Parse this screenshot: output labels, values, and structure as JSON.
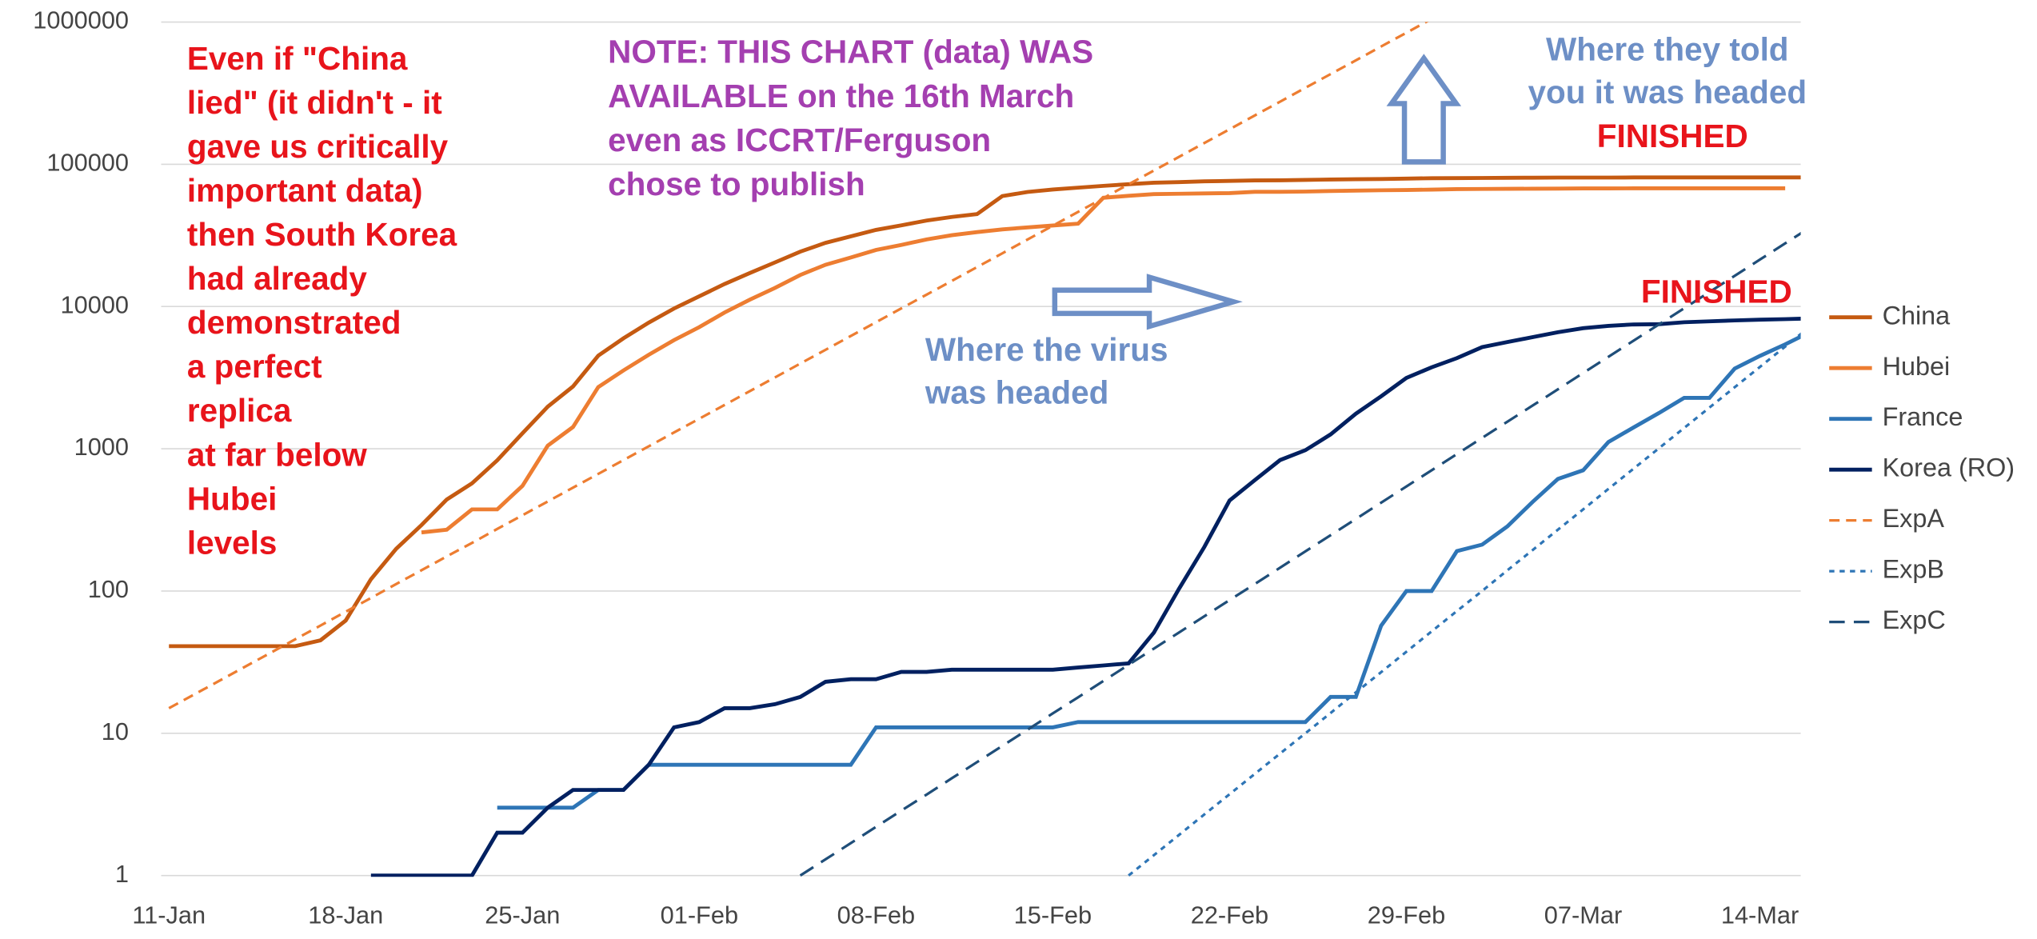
{
  "chart_data": {
    "type": "line",
    "ylog": true,
    "ylim": [
      1,
      1000000
    ],
    "yticks": [
      1,
      10,
      100,
      1000,
      10000,
      100000,
      1000000
    ],
    "grid": true,
    "legend": "right",
    "categories": [
      "11-Jan",
      null,
      null,
      null,
      null,
      null,
      null,
      "18-Jan",
      null,
      null,
      null,
      null,
      null,
      null,
      "25-Jan",
      null,
      null,
      null,
      null,
      null,
      null,
      "01-Feb",
      null,
      null,
      null,
      null,
      null,
      null,
      "08-Feb",
      null,
      null,
      null,
      null,
      null,
      null,
      "15-Feb",
      null,
      null,
      null,
      null,
      null,
      null,
      "22-Feb",
      null,
      null,
      null,
      null,
      null,
      null,
      "29-Feb",
      null,
      null,
      null,
      null,
      null,
      null,
      "07-Mar",
      null,
      null,
      null,
      null,
      null,
      null,
      "14-Mar",
      null,
      null
    ],
    "series": [
      {
        "name": "China",
        "color": "#c55a11",
        "dash": "solid",
        "values": [
          41,
          41,
          41,
          41,
          41,
          41,
          45,
          62,
          121,
          198,
          291,
          440,
          571,
          830,
          1287,
          1975,
          2744,
          4515,
          5974,
          7711,
          9692,
          11791,
          14380,
          17205,
          20438,
          24324,
          28018,
          31161,
          34546,
          37198,
          40171,
          42638,
          44653,
          59804,
          63851,
          66492,
          68500,
          70548,
          72436,
          74185,
          75002,
          75891,
          76288,
          76936,
          77150,
          77658,
          78064,
          78497,
          78824,
          79251,
          79824,
          80026,
          80151,
          80270,
          80409,
          80552,
          80651,
          80695,
          80735,
          80754,
          80778,
          80793,
          80813,
          80824,
          80844,
          80860
        ]
      },
      {
        "name": "Hubei",
        "color": "#ed7d31",
        "dash": "solid",
        "values": [
          null,
          null,
          null,
          null,
          null,
          null,
          null,
          null,
          null,
          null,
          258,
          270,
          375,
          375,
          549,
          1052,
          1423,
          2714,
          3554,
          4586,
          5806,
          7153,
          9074,
          11177,
          13522,
          16678,
          19665,
          22112,
          24953,
          27100,
          29631,
          31728,
          33366,
          34874,
          35998,
          37100,
          38200,
          58200,
          59989,
          61682,
          62031,
          62442,
          62662,
          64084,
          64084,
          64287,
          64786,
          65187,
          65596,
          65914,
          66337,
          66907,
          67103,
          67217,
          67332,
          67466,
          67592,
          67666,
          67707,
          67743,
          67760,
          67773,
          67781,
          67786,
          67790,
          null
        ]
      },
      {
        "name": "France",
        "color": "#2e75b6",
        "dash": "solid",
        "values": [
          null,
          null,
          null,
          null,
          null,
          null,
          null,
          null,
          null,
          null,
          null,
          null,
          null,
          3,
          3,
          3,
          3,
          4,
          4,
          6,
          6,
          6,
          6,
          6,
          6,
          6,
          6,
          6,
          11,
          11,
          11,
          11,
          11,
          11,
          11,
          11,
          12,
          12,
          12,
          12,
          12,
          12,
          12,
          12,
          12,
          12,
          18,
          18,
          57,
          100,
          100,
          191,
          212,
          285,
          423,
          613,
          706,
          1116,
          1412,
          1784,
          2281,
          2281,
          3661,
          4499,
          5423,
          6633
        ]
      },
      {
        "name": "Korea (RO)",
        "color": "#002060",
        "dash": "solid",
        "values": [
          null,
          null,
          null,
          null,
          null,
          null,
          null,
          null,
          1,
          1,
          1,
          1,
          1,
          2,
          2,
          3,
          4,
          4,
          4,
          6,
          11,
          12,
          15,
          15,
          16,
          18,
          23,
          24,
          24,
          27,
          27,
          28,
          28,
          28,
          28,
          28,
          29,
          30,
          31,
          51,
          104,
          204,
          433,
          602,
          833,
          977,
          1261,
          1766,
          2337,
          3150,
          3736,
          4335,
          5186,
          5621,
          6088,
          6593,
          7041,
          7314,
          7478,
          7513,
          7755,
          7869,
          7979,
          8086,
          8162,
          8236
        ]
      },
      {
        "name": "ExpA",
        "color": "#ed7d31",
        "dash": "dashed",
        "values": [
          15,
          18.75,
          23.4,
          29.3,
          36.6,
          45.8,
          57.2,
          71.5,
          89.4,
          112,
          140,
          175,
          218,
          273,
          341,
          426,
          533,
          666,
          833,
          1041,
          1301,
          1626,
          2033,
          2541,
          3177,
          3971,
          4964,
          6205,
          7756,
          9695,
          12119,
          15148,
          18935,
          23669,
          29587,
          36984,
          46229,
          57787,
          72234,
          90292,
          112865,
          141081,
          176352,
          220440,
          275550,
          344437,
          430547,
          538183,
          672729,
          840911,
          1051139,
          null,
          null,
          null,
          null,
          null,
          null,
          null,
          null,
          null,
          null,
          null,
          null,
          null,
          null,
          null
        ]
      },
      {
        "name": "ExpB",
        "color": "#2e75b6",
        "dash": "dotted",
        "values": [
          null,
          null,
          null,
          null,
          null,
          null,
          null,
          null,
          null,
          null,
          null,
          null,
          null,
          null,
          null,
          null,
          null,
          null,
          null,
          null,
          null,
          null,
          null,
          null,
          null,
          null,
          null,
          null,
          null,
          null,
          null,
          null,
          null,
          null,
          null,
          null,
          null,
          null,
          1,
          1.39,
          1.93,
          2.69,
          3.73,
          5.19,
          7.21,
          10.0,
          13.9,
          19.4,
          26.9,
          37.4,
          52.0,
          72.3,
          100,
          140,
          194,
          270,
          375,
          522,
          725,
          1008,
          1401,
          1948,
          2708,
          3764,
          5232,
          7272
        ]
      },
      {
        "name": "ExpC",
        "color": "#1f4e79",
        "dash": "longdash",
        "values": [
          null,
          null,
          null,
          null,
          null,
          null,
          null,
          null,
          null,
          null,
          null,
          null,
          null,
          null,
          null,
          null,
          null,
          null,
          null,
          null,
          null,
          null,
          null,
          null,
          null,
          1,
          1.3,
          1.69,
          2.2,
          2.86,
          3.71,
          4.83,
          6.27,
          8.16,
          10.6,
          13.8,
          17.9,
          23.3,
          30.3,
          39.4,
          51.2,
          66.5,
          86.5,
          112,
          146,
          190,
          247,
          321,
          418,
          543,
          706,
          917,
          1193,
          1550,
          2015,
          2620,
          3406,
          4428,
          5756,
          7483,
          9728,
          12646,
          16440,
          21372,
          27784,
          36119
        ]
      }
    ],
    "annotations": [
      {
        "kind": "claim",
        "lines": [
          "Even if \"China",
          "lied\" (it didn't - it",
          "gave us critically",
          "important data)",
          "then South Korea",
          "had already",
          "demonstrated",
          "a perfect",
          "replica",
          "at far below",
          "Hubei",
          "levels"
        ]
      },
      {
        "kind": "note",
        "lines": [
          "NOTE: THIS CHART (data) WAS",
          "AVAILABLE on the 16th March",
          "even as ICCRT/Ferguson",
          "chose to publish"
        ]
      },
      {
        "kind": "told",
        "lines": [
          "Where they told",
          "you it was headed"
        ]
      },
      {
        "kind": "finished-top",
        "lines": [
          "FINISHED"
        ]
      },
      {
        "kind": "finished",
        "lines": [
          "FINISHED"
        ]
      },
      {
        "kind": "virus",
        "lines": [
          "Where the virus",
          "was headed"
        ]
      }
    ]
  }
}
